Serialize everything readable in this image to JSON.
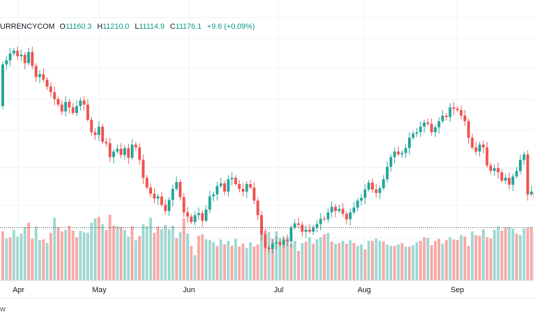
{
  "legend": {
    "symbol": "URRENCYCOM",
    "open_label": "O",
    "open": "11160.3",
    "high_label": "H",
    "high": "11210.0",
    "low_label": "L",
    "low": "11114.9",
    "close_label": "C",
    "close": "11176.1",
    "change": "+9.6 (+0.09%)"
  },
  "footer_text": "w",
  "colors": {
    "up": "#26a69a",
    "down": "#ef5350",
    "volume_up": "#9fd8d1",
    "volume_down": "#f7a9a7",
    "grid": "#eef0f3",
    "last_price_line": "#3b3b3b"
  },
  "chart_data": {
    "type": "candlestick",
    "x_tick_labels": [
      "Apr",
      "May",
      "Jun",
      "Jul",
      "Aug",
      "Sep"
    ],
    "grid": true,
    "price_axis": "not shown",
    "candles": [
      [
        0.0,
        60.0
      ],
      [
        60.0,
        66.0
      ],
      [
        66.0,
        76.0
      ],
      [
        76.0,
        80.0
      ],
      [
        80.0,
        72.0
      ],
      [
        72.0,
        74.0
      ],
      [
        74.0,
        62.0
      ],
      [
        62.0,
        78.0
      ],
      [
        78.0,
        58.0
      ],
      [
        58.0,
        42.0
      ],
      [
        42.0,
        46.0
      ],
      [
        46.0,
        38.0
      ],
      [
        38.0,
        28.0
      ],
      [
        28.0,
        20.0
      ],
      [
        20.0,
        10.0
      ],
      [
        10.0,
        2.0
      ],
      [
        2.0,
        -8.0
      ],
      [
        -8.0,
        6.0
      ],
      [
        6.0,
        -2.0
      ],
      [
        -2.0,
        -10.0
      ],
      [
        -10.0,
        0.0
      ],
      [
        0.0,
        8.0
      ],
      [
        8.0,
        2.0
      ],
      [
        2.0,
        -20.0
      ],
      [
        -20.0,
        -38.0
      ],
      [
        -38.0,
        -42.0
      ],
      [
        -42.0,
        -30.0
      ],
      [
        -30.0,
        -52.0
      ],
      [
        -52.0,
        -54.0
      ],
      [
        -54.0,
        -74.0
      ],
      [
        -74.0,
        -66.0
      ],
      [
        -66.0,
        -62.0
      ],
      [
        -62.0,
        -71.0
      ],
      [
        -71.0,
        -61.0
      ],
      [
        -61.0,
        -75.0
      ],
      [
        -75.0,
        -56.0
      ],
      [
        -56.0,
        -60.0
      ],
      [
        -60.0,
        -78.0
      ],
      [
        -78.0,
        -104.0
      ],
      [
        -104.0,
        -118.0
      ],
      [
        -118.0,
        -127.0
      ],
      [
        -127.0,
        -134.0
      ],
      [
        -134.0,
        -131.0
      ],
      [
        -131.0,
        -143.0
      ],
      [
        -143.0,
        -152.0
      ],
      [
        -152.0,
        -136.0
      ],
      [
        -136.0,
        -120.0
      ],
      [
        -120.0,
        -110.0
      ],
      [
        -110.0,
        -132.0
      ],
      [
        -132.0,
        -154.0
      ],
      [
        -154.0,
        -160.0
      ],
      [
        -160.0,
        -168.0
      ],
      [
        -168.0,
        -158.0
      ],
      [
        -158.0,
        -155.0
      ],
      [
        -155.0,
        -166.0
      ],
      [
        -166.0,
        -150.0
      ],
      [
        -150.0,
        -131.0
      ],
      [
        -131.0,
        -128.0
      ],
      [
        -128.0,
        -116.0
      ],
      [
        -116.0,
        -112.0
      ],
      [
        -112.0,
        -124.0
      ],
      [
        -124.0,
        -106.0
      ],
      [
        -106.0,
        -104.0
      ],
      [
        -104.0,
        -113.0
      ],
      [
        -113.0,
        -120.0
      ],
      [
        -120.0,
        -124.0
      ],
      [
        -124.0,
        -113.0
      ],
      [
        -113.0,
        -118.0
      ],
      [
        -118.0,
        -137.0
      ],
      [
        -137.0,
        -158.0
      ],
      [
        -158.0,
        -186.0
      ],
      [
        -186.0,
        -205.0
      ],
      [
        -205.0,
        -207.0
      ],
      [
        -207.0,
        -199.0
      ],
      [
        -199.0,
        -197.0
      ],
      [
        -197.0,
        -201.0
      ],
      [
        -201.0,
        -194.0
      ],
      [
        -194.0,
        -196.0
      ],
      [
        -196.0,
        -176.0
      ],
      [
        -176.0,
        -170.0
      ],
      [
        -170.0,
        -172.0
      ],
      [
        -172.0,
        -182.0
      ],
      [
        -182.0,
        -179.0
      ],
      [
        -179.0,
        -182.0
      ],
      [
        -182.0,
        -176.0
      ],
      [
        -176.0,
        -171.0
      ],
      [
        -171.0,
        -163.0
      ],
      [
        -163.0,
        -164.0
      ],
      [
        -164.0,
        -154.0
      ],
      [
        -154.0,
        -146.0
      ],
      [
        -146.0,
        -152.0
      ],
      [
        -152.0,
        -149.0
      ],
      [
        -149.0,
        -156.0
      ],
      [
        -156.0,
        -164.0
      ],
      [
        -164.0,
        -154.0
      ],
      [
        -154.0,
        -147.0
      ],
      [
        -147.0,
        -137.0
      ],
      [
        -137.0,
        -133.0
      ],
      [
        -133.0,
        -121.0
      ],
      [
        -121.0,
        -111.0
      ],
      [
        -111.0,
        -121.0
      ],
      [
        -121.0,
        -126.0
      ],
      [
        -126.0,
        -119.0
      ],
      [
        -119.0,
        -106.0
      ],
      [
        -106.0,
        -88.0
      ],
      [
        -88.0,
        -74.0
      ],
      [
        -74.0,
        -66.0
      ],
      [
        -66.0,
        -70.0
      ],
      [
        -70.0,
        -68.0
      ],
      [
        -68.0,
        -61.0
      ],
      [
        -61.0,
        -46.0
      ],
      [
        -46.0,
        -40.0
      ],
      [
        -40.0,
        -38.0
      ],
      [
        -38.0,
        -30.0
      ],
      [
        -30.0,
        -24.0
      ],
      [
        -24.0,
        -26.0
      ],
      [
        -26.0,
        -38.0
      ],
      [
        -38.0,
        -31.0
      ],
      [
        -31.0,
        -22.0
      ],
      [
        -22.0,
        -14.0
      ],
      [
        -14.0,
        -16.0
      ],
      [
        -16.0,
        -2.0
      ],
      [
        -2.0,
        -4.0
      ],
      [
        -4.0,
        -6.0
      ],
      [
        -6.0,
        -14.0
      ],
      [
        -14.0,
        -22.0
      ],
      [
        -22.0,
        -46.0
      ],
      [
        -46.0,
        -60.0
      ],
      [
        -60.0,
        -66.0
      ],
      [
        -66.0,
        -56.0
      ],
      [
        -56.0,
        -60.0
      ],
      [
        -60.0,
        -86.0
      ],
      [
        -86.0,
        -94.0
      ],
      [
        -94.0,
        -90.0
      ],
      [
        -90.0,
        -96.0
      ],
      [
        -96.0,
        -108.0
      ],
      [
        -108.0,
        -104.0
      ],
      [
        -104.0,
        -114.0
      ],
      [
        -114.0,
        -102.0
      ],
      [
        -102.0,
        -94.0
      ],
      [
        -94.0,
        -78.0
      ],
      [
        -78.0,
        -70.0
      ],
      [
        -70.0,
        -128.0
      ],
      [
        -128.0,
        -124.0
      ],
      [
        -124.0,
        -134.0
      ],
      [
        -134.0,
        -144.0
      ],
      [
        -144.0,
        -140.0
      ],
      [
        -140.0,
        -164.0
      ],
      [
        -164.0,
        -168.0
      ],
      [
        -168.0,
        -182.0
      ],
      [
        -182.0,
        -190.0
      ],
      [
        -190.0,
        -178.0
      ],
      [
        -178.0,
        -176.0
      ]
    ],
    "volumes": [
      [
        0,
        68
      ],
      [
        1,
        58
      ],
      [
        0,
        60
      ],
      [
        1,
        70
      ],
      [
        1,
        61
      ],
      [
        1,
        65
      ],
      [
        1,
        74
      ],
      [
        0,
        80
      ],
      [
        0,
        58
      ],
      [
        1,
        75
      ],
      [
        1,
        56
      ],
      [
        0,
        57
      ],
      [
        1,
        52
      ],
      [
        0,
        66
      ],
      [
        1,
        87
      ],
      [
        0,
        74
      ],
      [
        0,
        68
      ],
      [
        1,
        70
      ],
      [
        0,
        76
      ],
      [
        0,
        69
      ],
      [
        0,
        60
      ],
      [
        1,
        69
      ],
      [
        1,
        67
      ],
      [
        1,
        66
      ],
      [
        1,
        80
      ],
      [
        1,
        86
      ],
      [
        0,
        88
      ],
      [
        1,
        78
      ],
      [
        0,
        70
      ],
      [
        0,
        91
      ],
      [
        0,
        76
      ],
      [
        1,
        75
      ],
      [
        0,
        74
      ],
      [
        1,
        70
      ],
      [
        1,
        61
      ],
      [
        0,
        75
      ],
      [
        1,
        56
      ],
      [
        0,
        62
      ],
      [
        1,
        78
      ],
      [
        1,
        75
      ],
      [
        1,
        87
      ],
      [
        0,
        66
      ],
      [
        0,
        75
      ],
      [
        1,
        71
      ],
      [
        1,
        77
      ],
      [
        1,
        71
      ],
      [
        1,
        76
      ],
      [
        0,
        59
      ],
      [
        1,
        67
      ],
      [
        0,
        86
      ],
      [
        1,
        65
      ],
      [
        0,
        48
      ],
      [
        1,
        35
      ],
      [
        0,
        62
      ],
      [
        0,
        64
      ],
      [
        1,
        57
      ],
      [
        1,
        56
      ],
      [
        1,
        53
      ],
      [
        0,
        48
      ],
      [
        1,
        57
      ],
      [
        0,
        50
      ],
      [
        1,
        55
      ],
      [
        0,
        48
      ],
      [
        1,
        58
      ],
      [
        0,
        47
      ],
      [
        0,
        51
      ],
      [
        1,
        45
      ],
      [
        1,
        53
      ],
      [
        0,
        47
      ],
      [
        0,
        50
      ],
      [
        1,
        65
      ],
      [
        0,
        69
      ],
      [
        1,
        67
      ],
      [
        0,
        58
      ],
      [
        1,
        68
      ],
      [
        1,
        59
      ],
      [
        0,
        59
      ],
      [
        1,
        60
      ],
      [
        0,
        51
      ],
      [
        1,
        55
      ],
      [
        0,
        41
      ],
      [
        1,
        52
      ],
      [
        0,
        54
      ],
      [
        1,
        60
      ],
      [
        0,
        51
      ],
      [
        1,
        57
      ],
      [
        1,
        60
      ],
      [
        0,
        64
      ],
      [
        1,
        66
      ],
      [
        0,
        54
      ],
      [
        1,
        51
      ],
      [
        0,
        52
      ],
      [
        1,
        55
      ],
      [
        0,
        51
      ],
      [
        1,
        56
      ],
      [
        0,
        52
      ],
      [
        1,
        48
      ],
      [
        1,
        50
      ],
      [
        0,
        43
      ],
      [
        1,
        55
      ],
      [
        0,
        55
      ],
      [
        1,
        58
      ],
      [
        1,
        55
      ],
      [
        0,
        54
      ],
      [
        1,
        50
      ],
      [
        1,
        48
      ],
      [
        0,
        48
      ],
      [
        1,
        50
      ],
      [
        0,
        52
      ],
      [
        1,
        47
      ],
      [
        0,
        47
      ],
      [
        1,
        49
      ],
      [
        1,
        53
      ],
      [
        0,
        55
      ],
      [
        0,
        60
      ],
      [
        1,
        59
      ],
      [
        0,
        49
      ],
      [
        0,
        55
      ],
      [
        0,
        58
      ],
      [
        1,
        51
      ],
      [
        0,
        56
      ],
      [
        1,
        60
      ],
      [
        0,
        57
      ],
      [
        0,
        56
      ],
      [
        1,
        63
      ],
      [
        0,
        61
      ],
      [
        0,
        48
      ],
      [
        1,
        68
      ],
      [
        0,
        63
      ],
      [
        0,
        62
      ],
      [
        1,
        71
      ],
      [
        0,
        60
      ],
      [
        0,
        58
      ],
      [
        1,
        70
      ],
      [
        1,
        75
      ],
      [
        0,
        69
      ],
      [
        0,
        74
      ],
      [
        1,
        74
      ],
      [
        1,
        72
      ],
      [
        0,
        65
      ],
      [
        1,
        63
      ],
      [
        1,
        72
      ],
      [
        0,
        73
      ],
      [
        0,
        74
      ],
      [
        1,
        67
      ],
      [
        1,
        66
      ],
      [
        0,
        62
      ],
      [
        0,
        72
      ],
      [
        0,
        80
      ],
      [
        0,
        71
      ],
      [
        1,
        55
      ],
      [
        1,
        60
      ],
      [
        1,
        48
      ]
    ]
  }
}
